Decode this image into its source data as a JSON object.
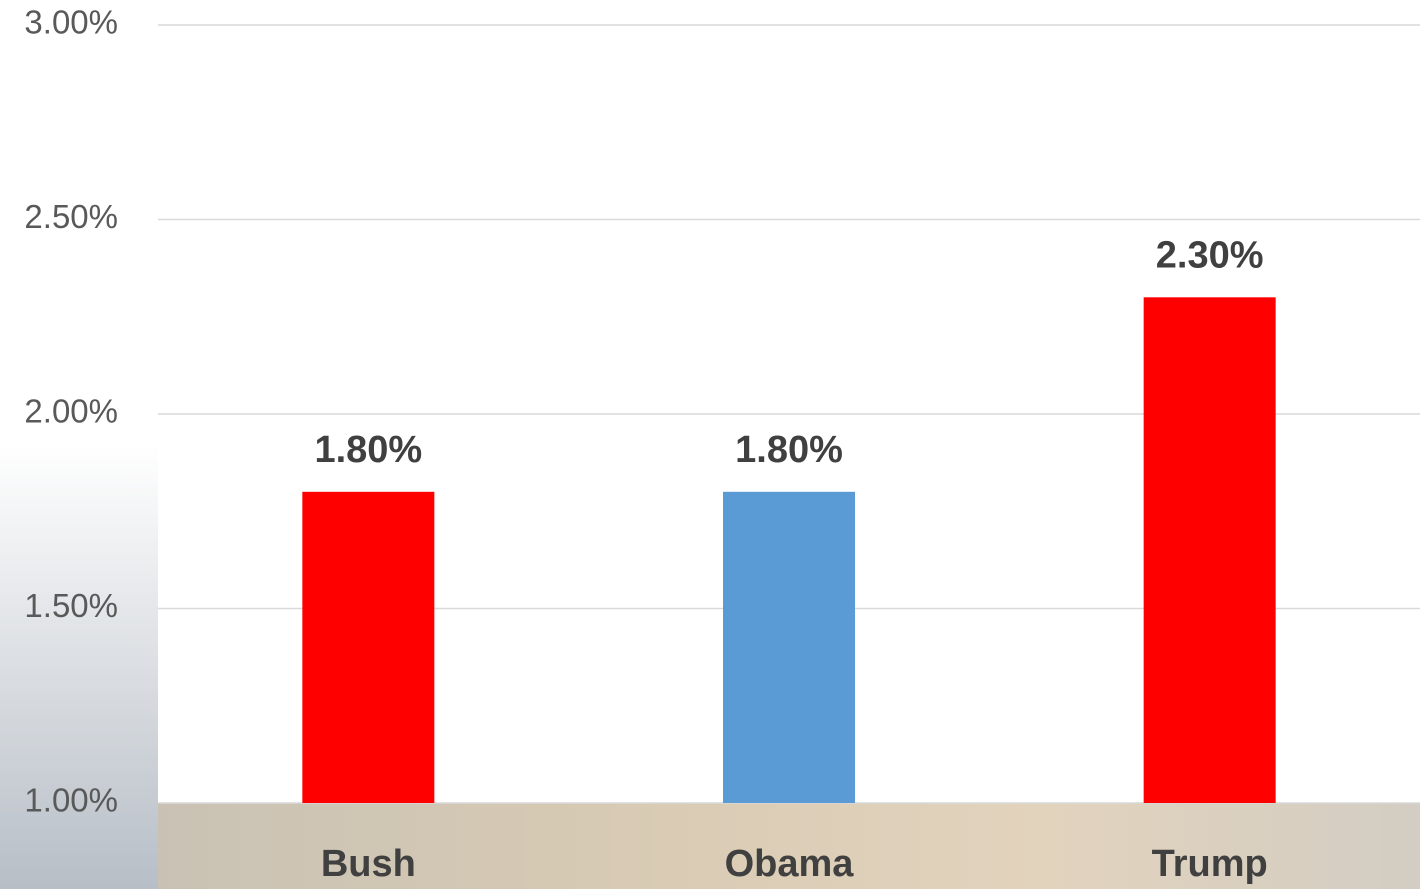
{
  "chart_data": {
    "type": "bar",
    "categories": [
      "Bush",
      "Obama",
      "Trump"
    ],
    "values": [
      1.8,
      1.8,
      2.3
    ],
    "value_labels": [
      "1.80%",
      "1.80%",
      "2.30%"
    ],
    "colors": [
      "#ff0000",
      "#5b9bd5",
      "#ff0000"
    ],
    "ylim": [
      1,
      3
    ],
    "yticks": [
      {
        "value": 1,
        "label": "1.00%"
      },
      {
        "value": 1.5,
        "label": "1.50%"
      },
      {
        "value": 2,
        "label": "2.00%"
      },
      {
        "value": 2.5,
        "label": "2.50%"
      },
      {
        "value": 3,
        "label": "3.00%"
      }
    ],
    "grid": true
  }
}
